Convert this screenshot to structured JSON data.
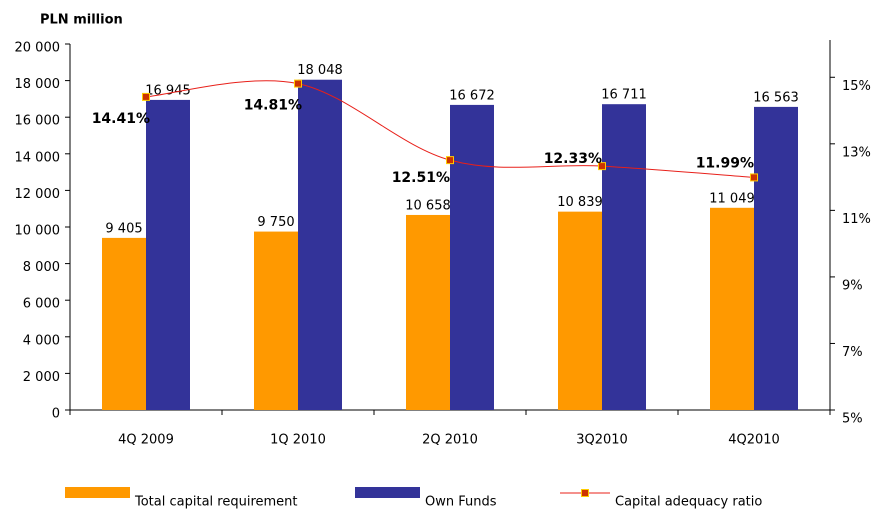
{
  "chart_data": {
    "type": "bar",
    "y_axis_label": "PLN million",
    "categories": [
      "4Q 2009",
      "1Q 2010",
      "2Q 2010",
      "3Q2010",
      "4Q2010"
    ],
    "series": [
      {
        "name": "Total capital requirement",
        "color": "#ff9900",
        "values": [
          9405,
          9750,
          10658,
          10839,
          11049
        ],
        "value_labels": [
          "9 405",
          "9 750",
          "10 658",
          "10 839",
          "11 049"
        ]
      },
      {
        "name": "Own Funds",
        "color": "#333399",
        "values": [
          16945,
          18048,
          16672,
          16711,
          16563
        ],
        "value_labels": [
          "16 945",
          "18 048",
          "16 672",
          "16 711",
          "16 563"
        ]
      },
      {
        "name": "Capital adequacy ratio",
        "type": "line",
        "axis": "y2",
        "color": "#e8201a",
        "marker_color": "#cc3300",
        "values": [
          14.41,
          14.81,
          12.51,
          12.33,
          11.99
        ],
        "value_labels": [
          "14.41%",
          "14.81%",
          "12.51%",
          "12.33%",
          "11.99%"
        ]
      }
    ],
    "ylim": [
      0,
      20000
    ],
    "yticks": [
      0,
      {
        "value": 2000,
        "label": "2 000"
      },
      {
        "value": 4000,
        "label": "4 000"
      },
      {
        "value": 6000,
        "label": "6 000"
      },
      {
        "value": 8000,
        "label": "8 000"
      },
      {
        "value": 10000,
        "label": "10 000"
      },
      {
        "value": 12000,
        "label": "12 000"
      },
      {
        "value": 14000,
        "label": "14 000"
      },
      {
        "value": 16000,
        "label": "16 000"
      },
      {
        "value": 18000,
        "label": "18 000"
      },
      {
        "value": 20000,
        "label": "20 000"
      }
    ],
    "y2lim": [
      5,
      16
    ],
    "y2ticks": [
      {
        "value": 5,
        "label": "5%"
      },
      {
        "value": 7,
        "label": "7%"
      },
      {
        "value": 9,
        "label": "9%"
      },
      {
        "value": 11,
        "label": "11%"
      },
      {
        "value": 13,
        "label": "13%"
      },
      {
        "value": 15,
        "label": "15%"
      }
    ],
    "legend": "bottom"
  }
}
